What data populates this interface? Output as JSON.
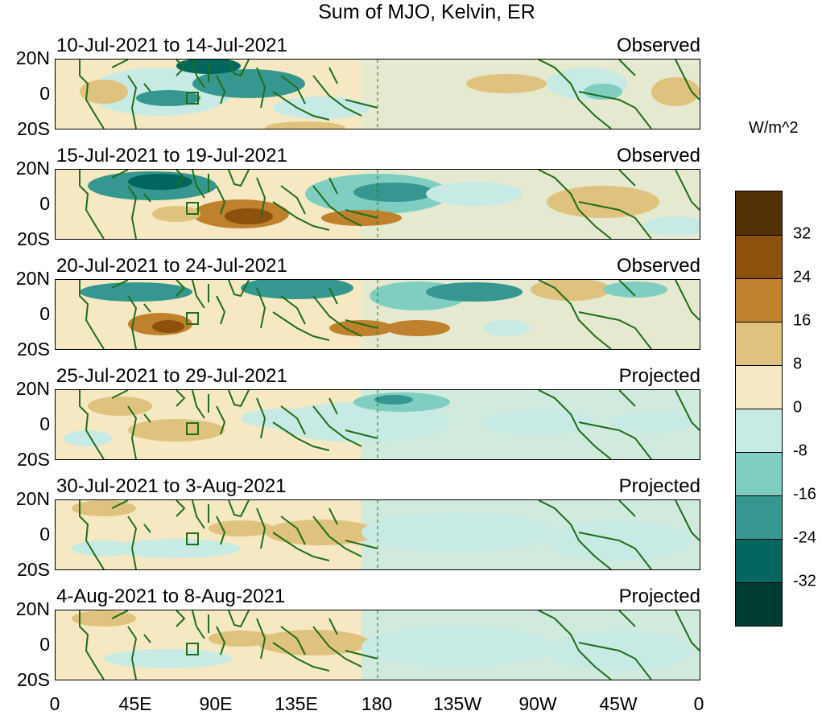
{
  "title": "Sum of MJO, Kelvin, ER",
  "lat_labels": [
    "20N",
    "0",
    "20S"
  ],
  "lon_labels": [
    "0",
    "45E",
    "90E",
    "135E",
    "180",
    "135W",
    "90W",
    "45W",
    "0"
  ],
  "panels": [
    {
      "date": "10-Jul-2021 to 14-Jul-2021",
      "status": "Observed"
    },
    {
      "date": "15-Jul-2021 to 19-Jul-2021",
      "status": "Observed"
    },
    {
      "date": "20-Jul-2021 to 24-Jul-2021",
      "status": "Observed"
    },
    {
      "date": "25-Jul-2021 to 29-Jul-2021",
      "status": "Projected"
    },
    {
      "date": "30-Jul-2021 to 3-Aug-2021",
      "status": "Projected"
    },
    {
      "date": "4-Aug-2021 to 8-Aug-2021",
      "status": "Projected"
    }
  ],
  "colorbar": {
    "unit": "W/m^2",
    "labels": [
      "32",
      "24",
      "16",
      "8",
      "0",
      "-8",
      "-16",
      "-24",
      "-32"
    ],
    "colors": [
      "#543005",
      "#8c510a",
      "#bf812d",
      "#dfc27d",
      "#f6e8c3",
      "#c7eae5",
      "#80cdc1",
      "#35978f",
      "#01665e",
      "#003c30"
    ]
  }
}
